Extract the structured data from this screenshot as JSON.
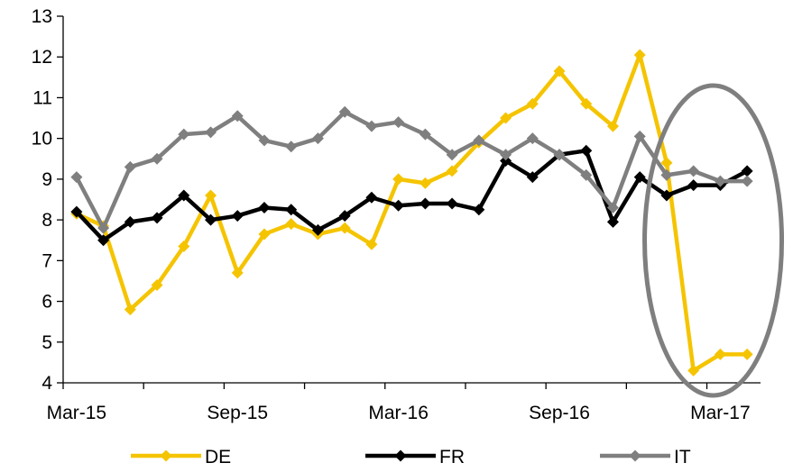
{
  "chart_data": {
    "type": "line",
    "title": "",
    "xlabel": "",
    "ylabel": "",
    "ylim": [
      4,
      13
    ],
    "yticks": [
      4,
      5,
      6,
      7,
      8,
      9,
      10,
      11,
      12,
      13
    ],
    "x": [
      "Mar-15",
      "Apr-15",
      "May-15",
      "Jun-15",
      "Jul-15",
      "Aug-15",
      "Sep-15",
      "Oct-15",
      "Nov-15",
      "Dec-15",
      "Jan-16",
      "Feb-16",
      "Mar-16",
      "Apr-16",
      "May-16",
      "Jun-16",
      "Jul-16",
      "Aug-16",
      "Sep-16",
      "Oct-16",
      "Nov-16",
      "Dec-16",
      "Jan-17",
      "Feb-17",
      "Mar-17",
      "Apr-17"
    ],
    "xtick_labels": [
      "Mar-15",
      "Sep-15",
      "Mar-16",
      "Sep-16",
      "Mar-17"
    ],
    "grid": false,
    "legend_position": "bottom",
    "series": [
      {
        "name": "DE",
        "color": "#F5C400",
        "values": [
          8.15,
          7.85,
          5.8,
          6.4,
          7.35,
          8.6,
          6.7,
          7.65,
          7.9,
          7.65,
          7.8,
          7.4,
          9.0,
          8.9,
          9.2,
          9.9,
          10.5,
          10.85,
          11.65,
          10.85,
          10.3,
          12.05,
          9.4,
          4.3,
          4.7,
          4.7
        ]
      },
      {
        "name": "FR",
        "color": "#000000",
        "values": [
          8.2,
          7.5,
          7.95,
          8.05,
          8.6,
          8.0,
          8.1,
          8.3,
          8.25,
          7.75,
          8.1,
          8.55,
          8.35,
          8.4,
          8.4,
          8.25,
          9.45,
          9.05,
          9.6,
          9.7,
          7.95,
          9.05,
          8.6,
          8.85,
          8.85,
          9.2
        ]
      },
      {
        "name": "IT",
        "color": "#7F7F7F",
        "values": [
          9.05,
          7.8,
          9.3,
          9.5,
          10.1,
          10.15,
          10.55,
          9.95,
          9.8,
          10.0,
          10.65,
          10.3,
          10.4,
          10.1,
          9.6,
          9.95,
          9.6,
          10.0,
          9.6,
          9.1,
          8.3,
          10.05,
          9.1,
          9.2,
          8.95,
          8.95
        ]
      }
    ],
    "highlight": {
      "shape": "ellipse",
      "color": "#7F7F7F",
      "around_x": [
        "Jan-17",
        "Apr-17"
      ]
    }
  }
}
